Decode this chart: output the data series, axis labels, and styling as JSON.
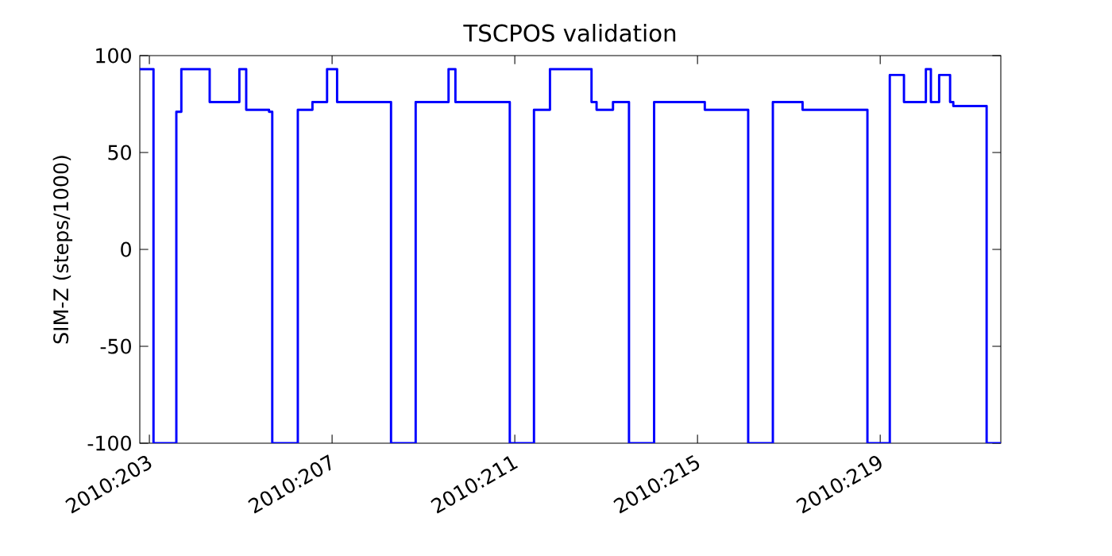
{
  "chart_data": {
    "type": "step",
    "title": "TSCPOS validation",
    "ylabel": "SIM-Z (steps/1000)",
    "xlim": [
      "2010-07-21T18:58",
      "2010-08-09T15:22"
    ],
    "ylim": [
      -100,
      100
    ],
    "xticks": [
      {
        "value": "2010-07-22",
        "label": "2010:203"
      },
      {
        "value": "2010-07-26",
        "label": "2010:207"
      },
      {
        "value": "2010-07-30",
        "label": "2010:211"
      },
      {
        "value": "2010-08-03",
        "label": "2010:215"
      },
      {
        "value": "2010-08-07",
        "label": "2010:219"
      }
    ],
    "yticks": [
      -100,
      -50,
      0,
      50,
      100
    ],
    "series": [
      {
        "color": "#0000ff",
        "x": [
          "2010-07-21T18:58",
          "2010-07-22T02:10",
          "2010-07-22T14:10",
          "2010-07-22T16:48",
          "2010-07-23T07:41",
          "2010-07-23T23:17",
          "2010-07-24T02:53",
          "2010-07-24T14:53",
          "2010-07-24T16:34",
          "2010-07-25T06:00",
          "2010-07-25T13:41",
          "2010-07-25T21:22",
          "2010-07-26T02:38",
          "2010-07-27T06:58",
          "2010-07-27T19:55",
          "2010-07-28T13:12",
          "2010-07-28T16:48",
          "2010-07-29T21:22",
          "2010-07-30T10:05",
          "2010-07-30T18:29",
          "2010-07-31T16:19",
          "2010-07-31T18:58",
          "2010-08-01T03:36",
          "2010-08-01T12:00",
          "2010-08-02T01:12",
          "2010-08-03T03:50",
          "2010-08-04T02:38",
          "2010-08-04T15:36",
          "2010-08-05T07:12",
          "2010-08-06T17:17",
          "2010-08-07T05:02",
          "2010-08-07T12:29",
          "2010-08-08T00:00",
          "2010-08-08T02:38",
          "2010-08-08T06:58",
          "2010-08-08T12:43",
          "2010-08-08T14:24",
          "2010-08-09T07:55",
          "2010-08-09T15:22"
        ],
        "values": [
          93,
          -100,
          71,
          93,
          76,
          93,
          72,
          71,
          -100,
          72,
          76,
          93,
          76,
          -100,
          76,
          93,
          76,
          -100,
          72,
          93,
          76,
          72,
          76,
          -100,
          76,
          72,
          -100,
          76,
          72,
          -100,
          90,
          76,
          93,
          76,
          90,
          76,
          74,
          -100,
          -100
        ]
      }
    ]
  }
}
